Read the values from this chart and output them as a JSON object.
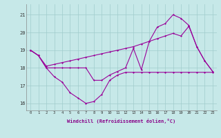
{
  "xlabel": "Windchill (Refroidissement éolien,°C)",
  "background_color": "#c6e8e8",
  "line_color": "#990099",
  "grid_color": "#a0cccc",
  "x_ticks": [
    0,
    1,
    2,
    3,
    4,
    5,
    6,
    7,
    8,
    9,
    10,
    11,
    12,
    13,
    14,
    15,
    16,
    17,
    18,
    19,
    20,
    21,
    22,
    23
  ],
  "y_ticks": [
    16,
    17,
    18,
    19,
    20,
    21
  ],
  "ylim": [
    15.6,
    21.6
  ],
  "xlim": [
    -0.5,
    23.5
  ],
  "series1_x": [
    0,
    1,
    2,
    3,
    4,
    5,
    6,
    7,
    8,
    9,
    10,
    11,
    12,
    13,
    14,
    15,
    16,
    17,
    18,
    19,
    20,
    21,
    22,
    23
  ],
  "series1_y": [
    19.0,
    18.7,
    18.0,
    17.5,
    17.2,
    16.6,
    16.3,
    16.0,
    16.1,
    16.5,
    17.3,
    17.6,
    17.75,
    17.75,
    17.75,
    17.75,
    17.75,
    17.75,
    17.75,
    17.75,
    17.75,
    17.75,
    17.75,
    17.75
  ],
  "series2_x": [
    0,
    1,
    2,
    3,
    4,
    5,
    6,
    7,
    8,
    9,
    10,
    11,
    12,
    13,
    14,
    15,
    16,
    17,
    18,
    19,
    20,
    21,
    22,
    23
  ],
  "series2_y": [
    19.0,
    18.7,
    18.0,
    18.0,
    18.0,
    18.0,
    18.0,
    18.0,
    17.3,
    17.3,
    17.6,
    17.8,
    18.0,
    19.1,
    17.9,
    19.5,
    20.3,
    20.5,
    21.0,
    20.8,
    20.4,
    19.2,
    18.4,
    17.8
  ],
  "series3_x": [
    0,
    1,
    2,
    3,
    4,
    5,
    6,
    7,
    8,
    9,
    10,
    11,
    12,
    13,
    14,
    15,
    16,
    17,
    18,
    19,
    20,
    21,
    22,
    23
  ],
  "series3_y": [
    19.0,
    18.7,
    18.1,
    18.2,
    18.3,
    18.4,
    18.5,
    18.6,
    18.7,
    18.8,
    18.9,
    19.0,
    19.1,
    19.2,
    19.35,
    19.5,
    19.65,
    19.8,
    19.95,
    19.8,
    20.35,
    19.2,
    18.4,
    17.8
  ]
}
